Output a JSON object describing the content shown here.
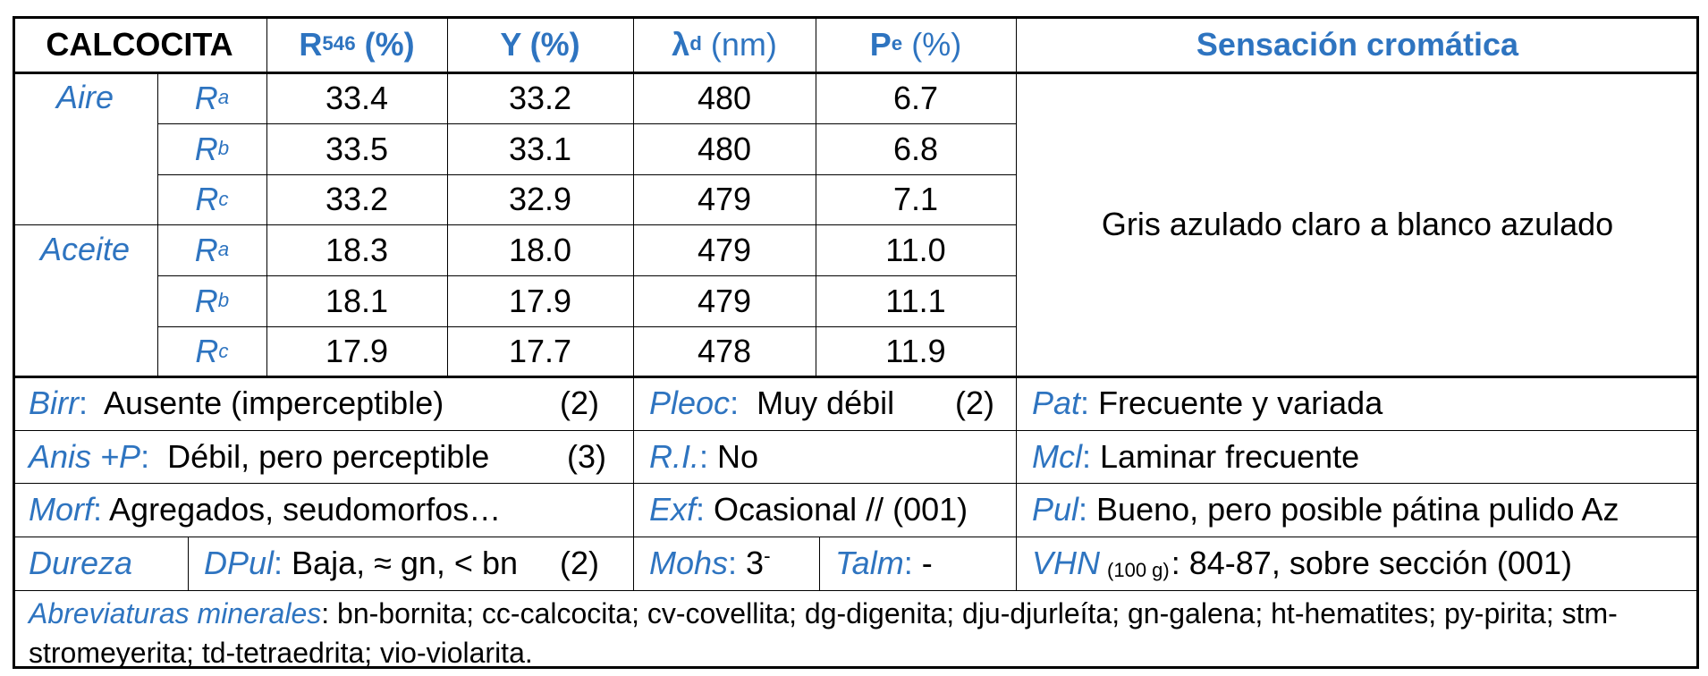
{
  "header": {
    "mineral": "CALCOCITA",
    "r546_main": "R",
    "r546_sub": "546",
    "r546_unit": " (%)",
    "y": "Y (%)",
    "lambda_main": "λ",
    "lambda_sub": "d",
    "lambda_unit": " (nm)",
    "pe_main": "P",
    "pe_sub": "e",
    "pe_unit": " (%)",
    "sensacion": "Sensación cromática"
  },
  "media": [
    "Aire",
    "Aceite"
  ],
  "rows": [
    {
      "r": "R",
      "s": "a",
      "r546": "33.4",
      "y": "33.2",
      "lambda": "480",
      "pe": "6.7"
    },
    {
      "r": "R",
      "s": "b",
      "r546": "33.5",
      "y": "33.1",
      "lambda": "480",
      "pe": "6.8"
    },
    {
      "r": "R",
      "s": "c",
      "r546": "33.2",
      "y": "32.9",
      "lambda": "479",
      "pe": "7.1"
    },
    {
      "r": "R",
      "s": "a",
      "r546": "18.3",
      "y": "18.0",
      "lambda": "479",
      "pe": "11.0"
    },
    {
      "r": "R",
      "s": "b",
      "r546": "18.1",
      "y": "17.9",
      "lambda": "479",
      "pe": "11.1"
    },
    {
      "r": "R",
      "s": "c",
      "r546": "17.9",
      "y": "17.7",
      "lambda": "478",
      "pe": "11.9"
    }
  ],
  "sensacion_value": "Gris azulado claro a blanco azulado",
  "props": {
    "birr_label": "Birr",
    "birr_value": "  Ausente (imperceptible)",
    "birr_code": "(2)",
    "pleoc_label": "Pleoc",
    "pleoc_value": "  Muy débil",
    "pleoc_code": "(2)",
    "pat_label": "Pat",
    "pat_value": " Frecuente y variada",
    "anis_label": "Anis +P",
    "anis_value": "  Débil, pero perceptible",
    "anis_code": "(3)",
    "ri_label": "R.I.",
    "ri_value": " No",
    "mcl_label": "Mcl",
    "mcl_value": " Laminar frecuente",
    "morf_label": "Morf",
    "morf_value": " Agregados, seudomorfos…",
    "exf_label": "Exf",
    "exf_value": " Ocasional // (001)",
    "pul_label": "Pul",
    "pul_value": " Bueno, pero posible pátina pulido Az",
    "dureza_label": "Dureza",
    "dpul_label": "DPul",
    "dpul_value": " Baja, ≈ gn, < bn",
    "dpul_code": "(2)",
    "mohs_label": "Mohs",
    "mohs_value": " 3",
    "mohs_sup": "-",
    "talm_label": "Talm",
    "talm_value": " -",
    "vhn_label": "VHN",
    "vhn_sub": "(100 g)",
    "vhn_value": ": 84-87, sobre sección (001)"
  },
  "footer": {
    "label": "Abreviaturas minerales",
    "text": ": bn-bornita; cc-calcocita; cv-covellita; dg-digenita; dju-djurleíta; gn-galena; ht-hematites; py-pirita; stm-stromeyerita; td-tetraedrita; vio-violarita."
  },
  "colors": {
    "accent": "#2e74c0",
    "text": "#000000",
    "rule": "#000000"
  }
}
